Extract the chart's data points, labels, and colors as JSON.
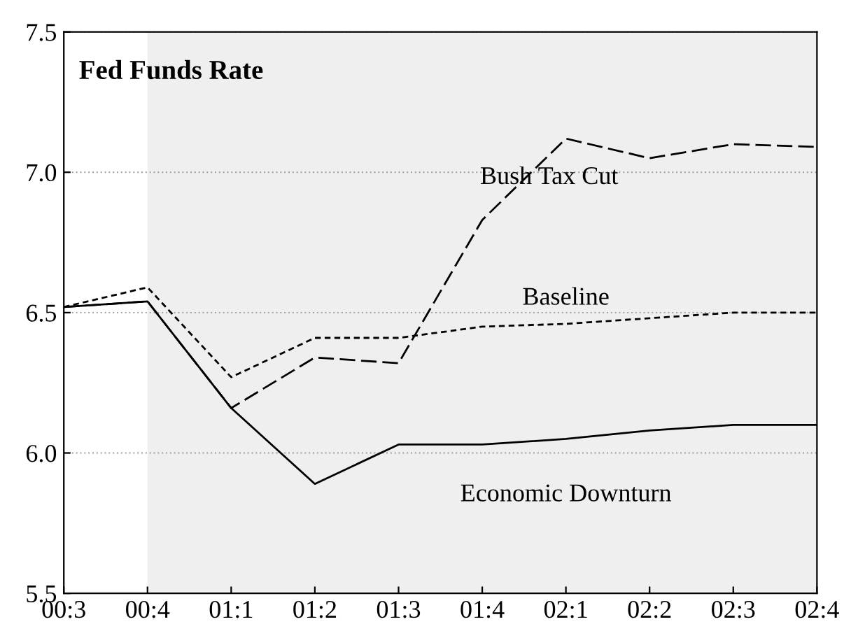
{
  "chart_data": {
    "type": "line",
    "title": "Fed Funds Rate",
    "categories": [
      "00:3",
      "00:4",
      "01:1",
      "01:2",
      "01:3",
      "01:4",
      "02:1",
      "02:2",
      "02:3",
      "02:4"
    ],
    "series": [
      {
        "name": "Bush Tax Cut",
        "color": "#000000",
        "line_style": "dashed",
        "values": [
          6.52,
          6.54,
          6.16,
          6.34,
          6.32,
          6.83,
          7.12,
          7.05,
          7.1,
          7.09
        ]
      },
      {
        "name": "Baseline",
        "color": "#000000",
        "line_style": "dotted",
        "values": [
          6.52,
          6.59,
          6.27,
          6.41,
          6.41,
          6.45,
          6.46,
          6.48,
          6.5,
          6.5
        ]
      },
      {
        "name": "Economic Downturn",
        "color": "#000000",
        "line_style": "solid",
        "values": [
          6.52,
          6.54,
          6.16,
          5.89,
          6.03,
          6.03,
          6.05,
          6.08,
          6.1,
          6.1
        ]
      }
    ],
    "ylim": [
      5.5,
      7.5
    ],
    "yticks": [
      5.5,
      {
        "value": 6.0,
        "label": "6.0"
      },
      6.5,
      {
        "value": 7.0,
        "label": "7.0"
      },
      7.5
    ],
    "bands": [
      {
        "axis": "x",
        "from": "00:4",
        "to": "02:4",
        "color": "#efefef"
      }
    ],
    "grid": "y",
    "legend": false
  }
}
